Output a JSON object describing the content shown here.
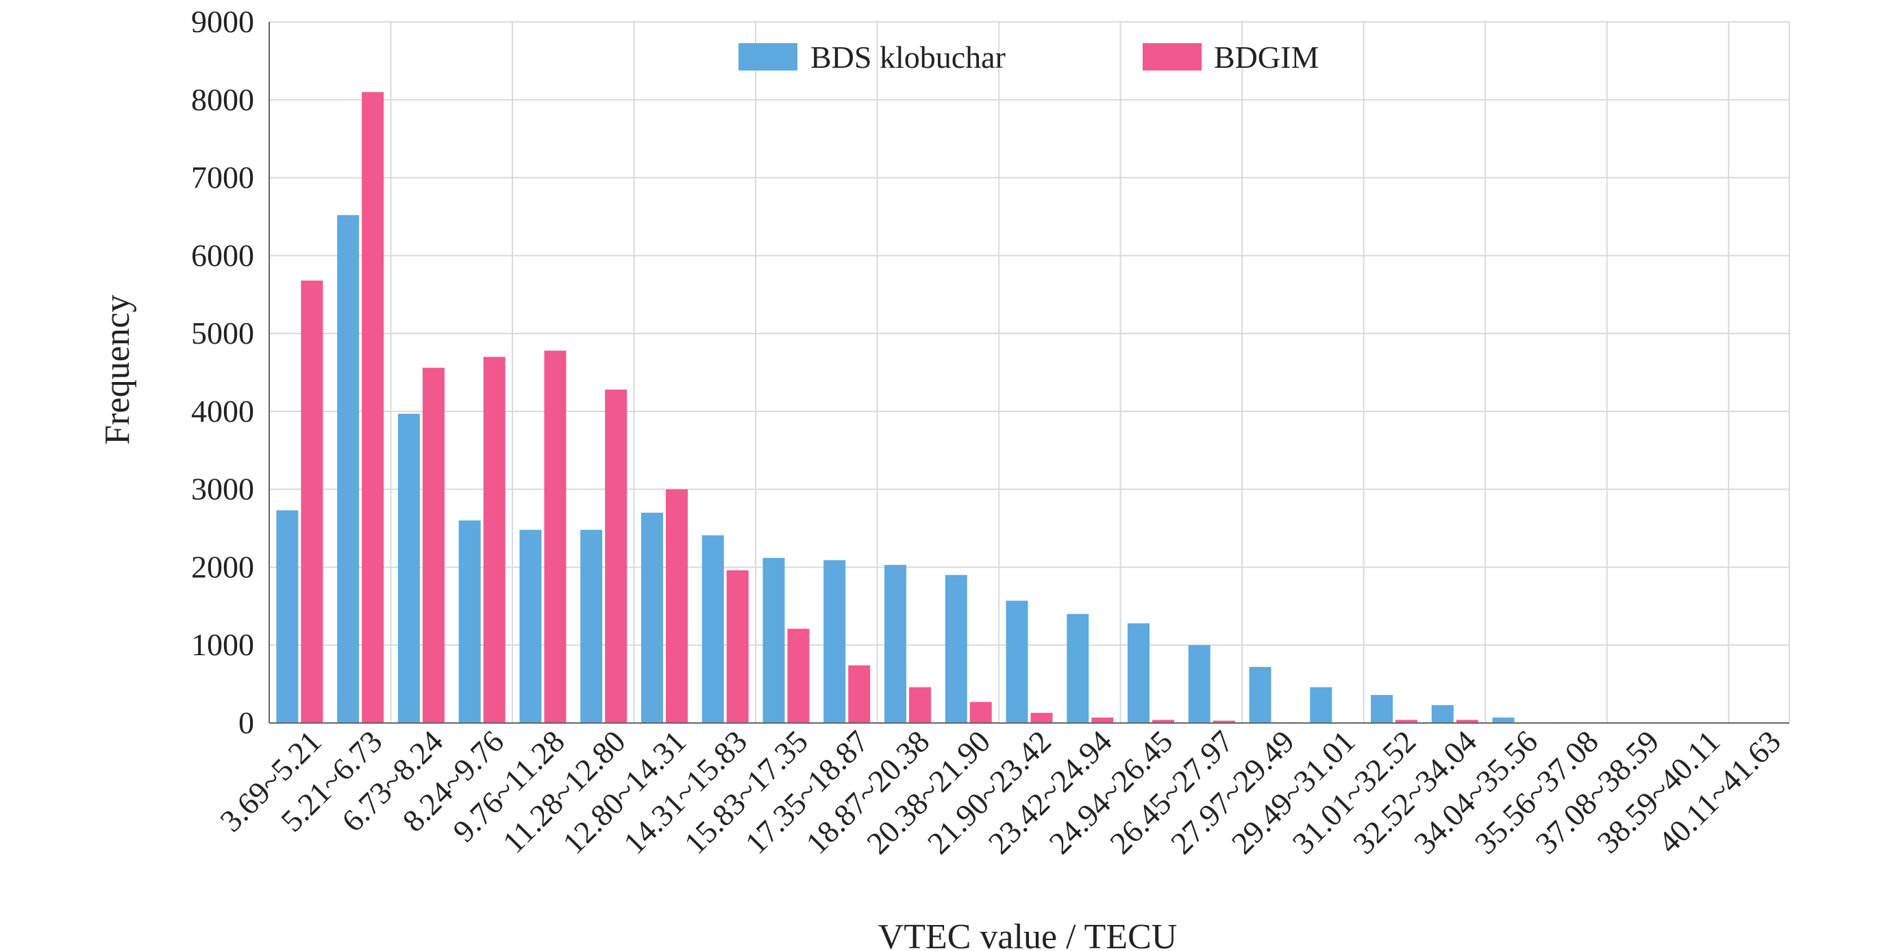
{
  "chart_data": {
    "type": "bar",
    "title": "",
    "xlabel": "VTEC value / TECU",
    "ylabel": "Frequency",
    "ylim": [
      0,
      9000
    ],
    "yticks": [
      0,
      1000,
      2000,
      3000,
      4000,
      5000,
      6000,
      7000,
      8000,
      9000
    ],
    "grid": true,
    "legend_position": "top-center",
    "categories": [
      "3.69~5.21",
      "5.21~6.73",
      "6.73~8.24",
      "8.24~9.76",
      "9.76~11.28",
      "11.28~12.80",
      "12.80~14.31",
      "14.31~15.83",
      "15.83~17.35",
      "17.35~18.87",
      "18.87~20.38",
      "20.38~21.90",
      "21.90~23.42",
      "23.42~24.94",
      "24.94~26.45",
      "26.45~27.97",
      "27.97~29.49",
      "29.49~31.01",
      "31.01~32.52",
      "32.52~34.04",
      "34.04~35.56",
      "35.56~37.08",
      "37.08~38.59",
      "38.59~40.11",
      "40.11~41.63"
    ],
    "series": [
      {
        "name": "BDS klobuchar",
        "color": "#5DA9E0",
        "values": [
          2730,
          6520,
          3970,
          2600,
          2480,
          2480,
          2700,
          2410,
          2120,
          2090,
          2030,
          1900,
          1570,
          1400,
          1280,
          1000,
          720,
          460,
          360,
          230,
          70,
          10,
          0,
          0,
          0
        ]
      },
      {
        "name": "BDGIM",
        "color": "#F0588E",
        "values": [
          5680,
          8100,
          4560,
          4700,
          4780,
          4280,
          3000,
          1960,
          1210,
          740,
          460,
          270,
          130,
          70,
          40,
          30,
          10,
          0,
          40,
          40,
          0,
          0,
          0,
          0,
          0
        ]
      }
    ]
  }
}
